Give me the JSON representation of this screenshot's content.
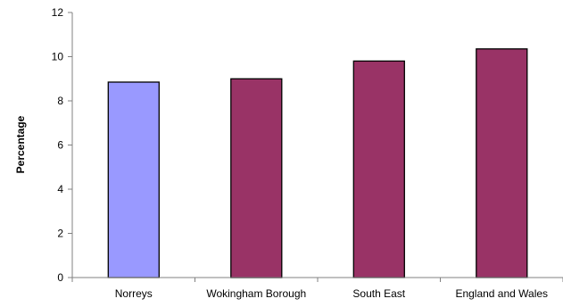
{
  "chart_data": {
    "type": "bar",
    "title": "",
    "xlabel": "",
    "ylabel": "Percentage",
    "categories": [
      "Norreys",
      "Wokingham Borough",
      "South East",
      "England and Wales"
    ],
    "values": [
      8.85,
      9.0,
      9.8,
      10.35
    ],
    "bar_colors": [
      "#9999FF",
      "#993366",
      "#993366",
      "#993366"
    ],
    "ylim": [
      0,
      12
    ],
    "yticks": [
      "0",
      "2",
      "4",
      "6",
      "8",
      "10",
      "12"
    ],
    "ytick_values": [
      0,
      2,
      4,
      6,
      8,
      10,
      12
    ],
    "grid": false,
    "legend": "none"
  }
}
